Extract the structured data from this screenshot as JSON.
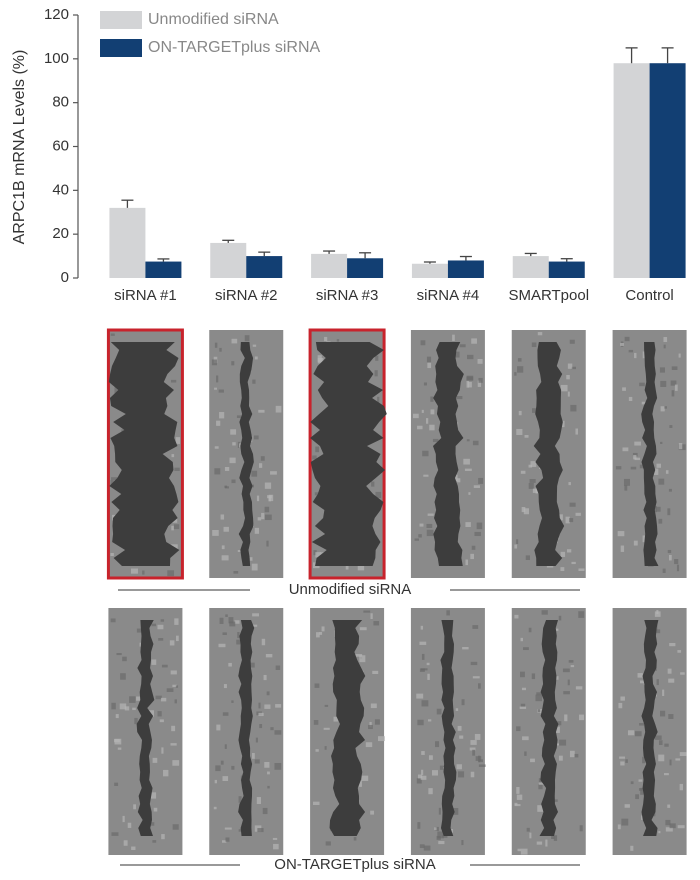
{
  "chart_data": {
    "type": "bar",
    "ylabel": "ARPC1B mRNA Levels (%)",
    "categories": [
      "siRNA #1",
      "siRNA #2",
      "siRNA #3",
      "siRNA #4",
      "SMARTpool",
      "Control"
    ],
    "series": [
      {
        "name": "Unmodified siRNA",
        "color": "#d3d4d6",
        "values": [
          32,
          16,
          11,
          6.5,
          10,
          98
        ],
        "errors": [
          3.5,
          1.2,
          1.3,
          0.8,
          1.2,
          7
        ]
      },
      {
        "name": "ON-TARGETplus siRNA",
        "color": "#123f73",
        "values": [
          7.5,
          10,
          9,
          8,
          7.5,
          98
        ],
        "errors": [
          1.2,
          1.8,
          2.5,
          1.8,
          1.3,
          7
        ]
      }
    ],
    "ylim": [
      0,
      120
    ],
    "yticks": [
      0,
      20,
      40,
      60,
      80,
      100,
      120
    ],
    "legend": "top-left"
  }
}
